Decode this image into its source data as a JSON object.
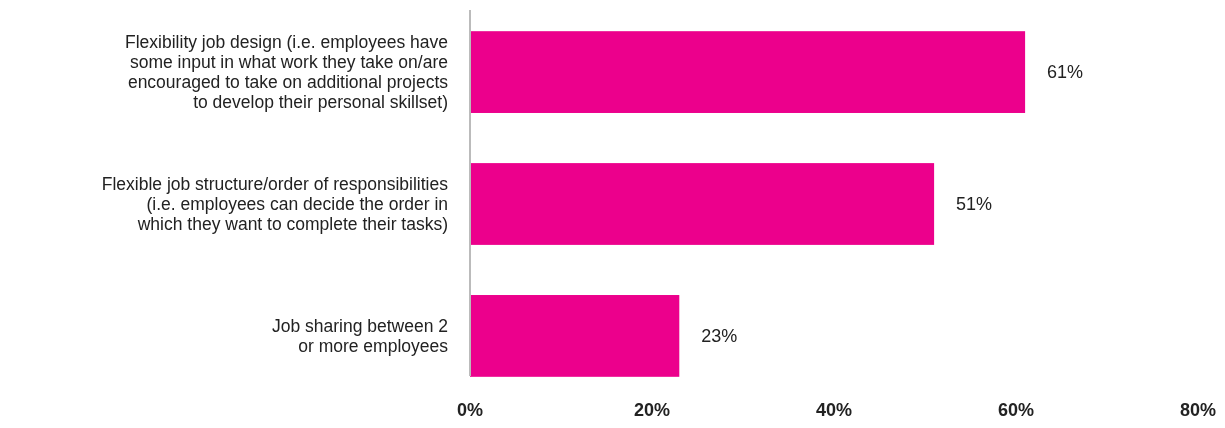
{
  "chart_data": {
    "type": "bar",
    "orientation": "horizontal",
    "categories": [
      "Flexibility job design (i.e. employees have\nsome input in what work they take on/are\nencouraged to take on additional projects\nto develop their personal skillset)",
      "Flexible job structure/order of responsibilities\n(i.e. employees can decide the order in\nwhich they want to complete their tasks)",
      "Job sharing between 2\nor more employees"
    ],
    "values": [
      61,
      51,
      23
    ],
    "value_labels": [
      "61%",
      "51%",
      "23%"
    ],
    "color": "#ec008c",
    "xlim": [
      0,
      80
    ],
    "xticks": [
      {
        "value": 0,
        "label": "0%"
      },
      {
        "value": 20,
        "label": "20%"
      },
      {
        "value": 40,
        "label": "40%"
      },
      {
        "value": 60,
        "label": "60%"
      },
      {
        "value": 80,
        "label": "80%"
      }
    ],
    "grid": false
  }
}
